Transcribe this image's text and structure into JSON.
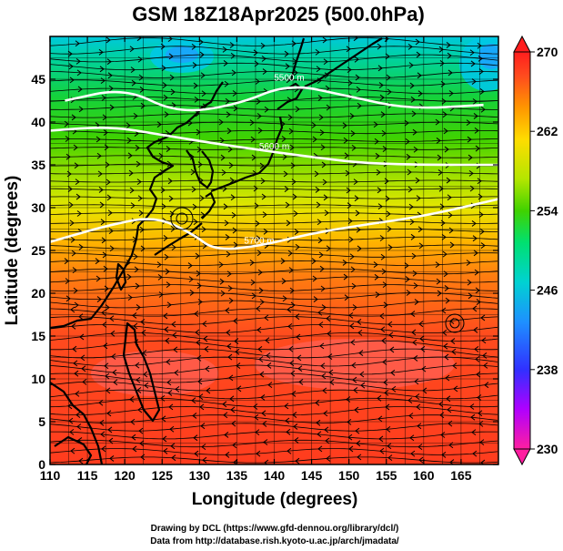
{
  "title": "GSM 18Z18Apr2025 (500.0hPa)",
  "x_axis": {
    "label": "Longitude (degrees)",
    "ticks": [
      "110",
      "115",
      "120",
      "125",
      "130",
      "135",
      "140",
      "145",
      "150",
      "155",
      "160",
      "165"
    ],
    "range": [
      110,
      170
    ]
  },
  "y_axis": {
    "label": "Latitude (degrees)",
    "ticks": [
      "0",
      "5",
      "10",
      "15",
      "20",
      "25",
      "30",
      "35",
      "40",
      "45"
    ],
    "range": [
      0,
      50
    ]
  },
  "colorbar": {
    "ticks": [
      "270",
      "262",
      "254",
      "246",
      "238",
      "230"
    ],
    "range": [
      230,
      270
    ],
    "colors": [
      "#ff1ea0",
      "#b000ff",
      "#3030ff",
      "#1e90ff",
      "#00d2d2",
      "#00e070",
      "#40d200",
      "#b4e600",
      "#ffdc00",
      "#ff9600",
      "#ff4b1e",
      "#ff1e1e"
    ]
  },
  "contours": [
    {
      "label": "5500 m",
      "lat_points": [
        [
          112,
          42.5
        ],
        [
          120,
          44
        ],
        [
          127,
          41
        ],
        [
          135,
          42
        ],
        [
          142,
          44.5
        ],
        [
          150,
          43
        ],
        [
          158,
          41.5
        ],
        [
          168,
          42
        ]
      ]
    },
    {
      "label": "5600 m",
      "lat_points": [
        [
          110,
          39
        ],
        [
          118,
          39.5
        ],
        [
          125,
          38.5
        ],
        [
          132,
          37.5
        ],
        [
          140,
          36.5
        ],
        [
          146,
          35.8
        ],
        [
          152,
          35.2
        ],
        [
          160,
          35
        ],
        [
          170,
          35
        ]
      ]
    },
    {
      "label": "5700 m",
      "lat_points": [
        [
          110,
          26
        ],
        [
          118,
          28
        ],
        [
          124,
          29
        ],
        [
          129,
          27
        ],
        [
          132,
          25
        ],
        [
          138,
          25.5
        ],
        [
          145,
          27
        ],
        [
          152,
          28
        ],
        [
          160,
          29
        ],
        [
          170,
          31
        ]
      ]
    }
  ],
  "data_source_lines": [
    "Drawing by DCL (https://www.gfd-dennou.org/library/dcl/)",
    "Data from http://database.rish.kyoto-u.ac.jp/arch/jmadata/"
  ]
}
